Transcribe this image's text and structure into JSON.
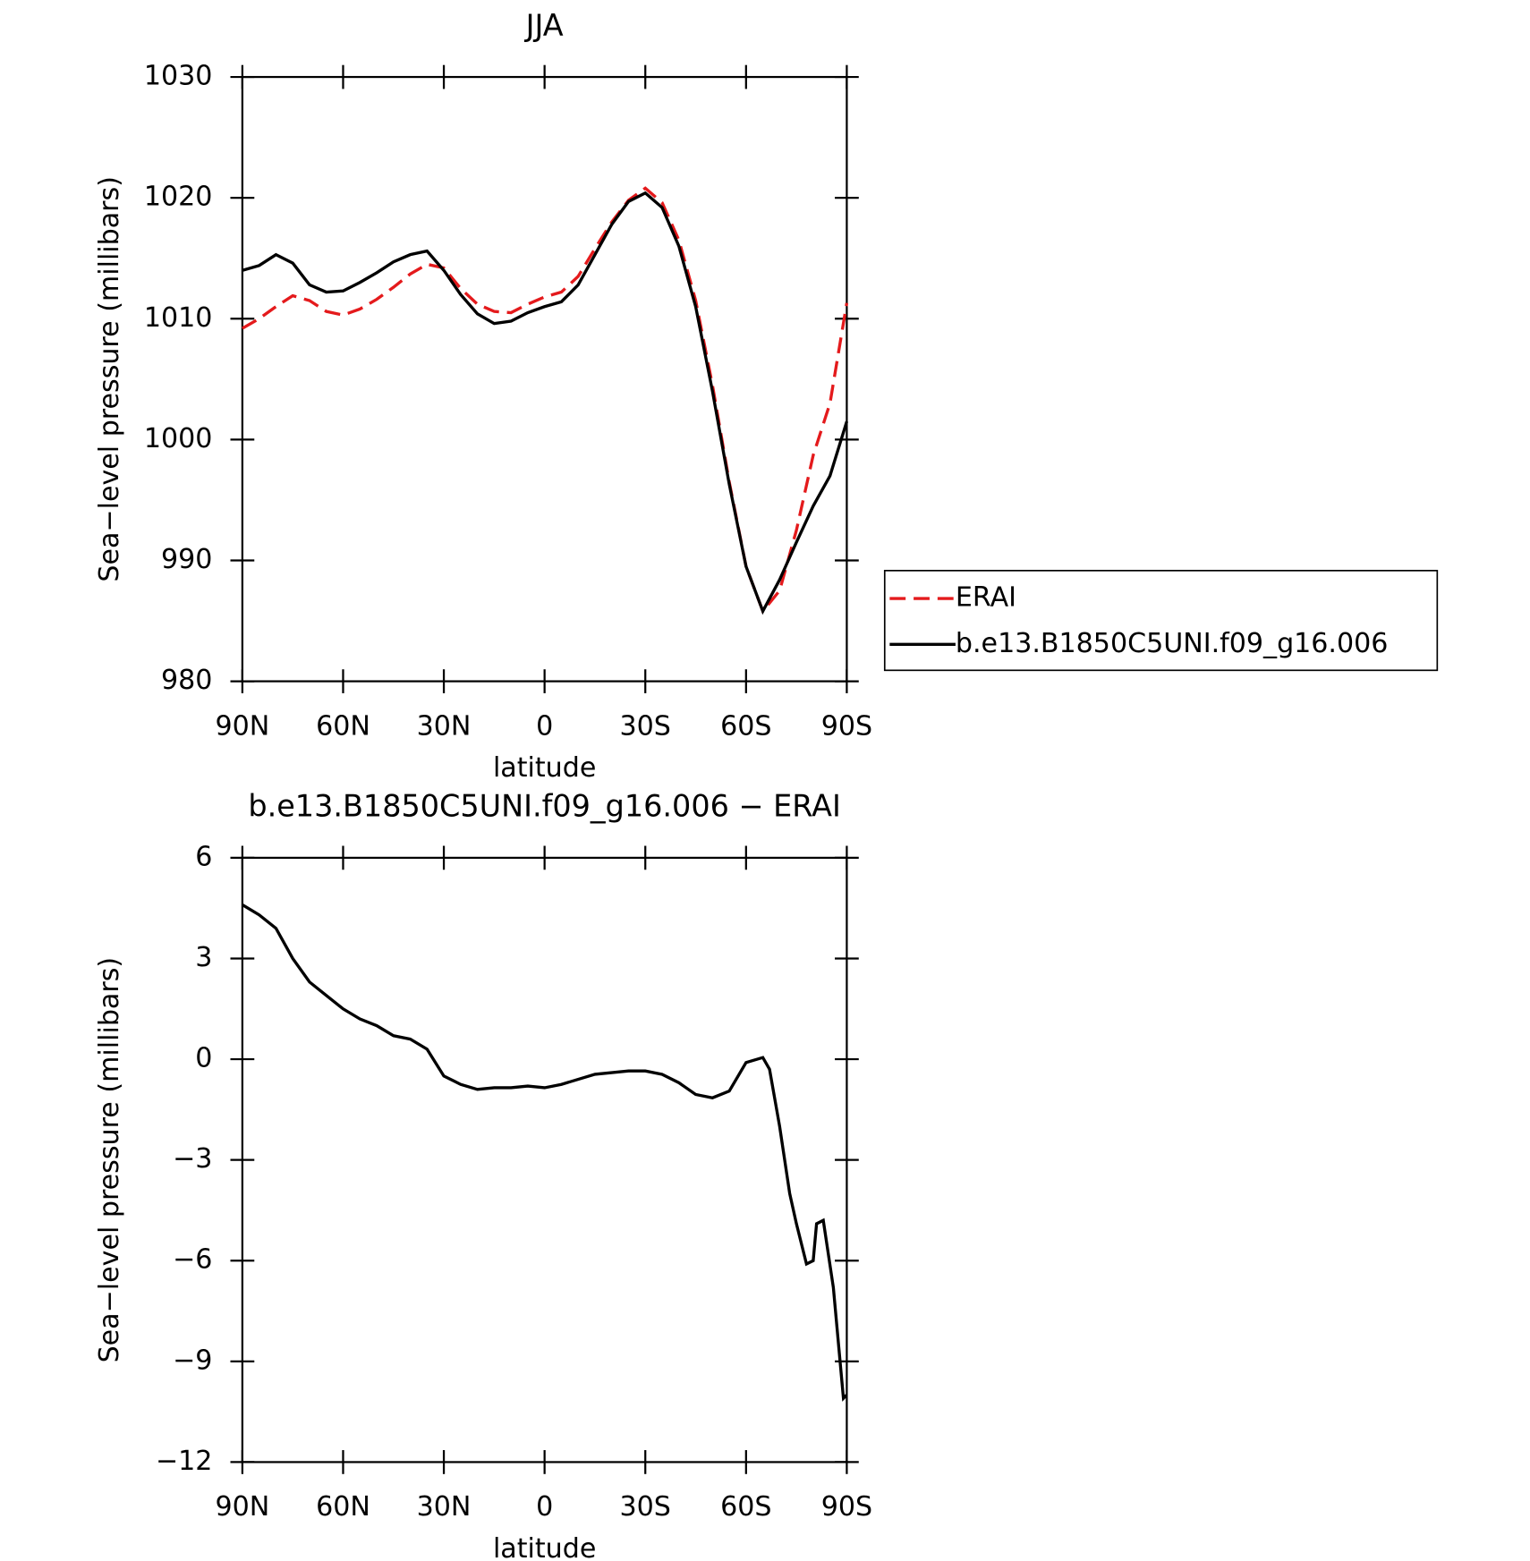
{
  "chart_data": [
    {
      "type": "line",
      "title": "JJA",
      "x_label": "latitude",
      "y_label": "Sea−level pressure (millibars)",
      "x": [
        90,
        85,
        80,
        75,
        70,
        65,
        60,
        55,
        50,
        45,
        40,
        35,
        30,
        25,
        20,
        15,
        10,
        5,
        0,
        -5,
        -10,
        -15,
        -20,
        -25,
        -30,
        -35,
        -40,
        -45,
        -50,
        -55,
        -60,
        -65,
        -70,
        -75,
        -80,
        -85,
        -90
      ],
      "series": [
        {
          "name": "ERAI",
          "color": "#e41a1c",
          "dash": true,
          "values": [
            1009.2,
            1010,
            1011,
            1011.9,
            1011.5,
            1010.6,
            1010.3,
            1010.8,
            1011.6,
            1012.6,
            1013.7,
            1014.5,
            1014.2,
            1012.5,
            1011.2,
            1010.6,
            1010.5,
            1011.2,
            1011.8,
            1012.2,
            1013.5,
            1015.8,
            1018,
            1019.8,
            1020.8,
            1019.6,
            1016.5,
            1011.5,
            1004.5,
            996.5,
            989.5,
            985.8,
            987.5,
            992.5,
            998.7,
            1003,
            1011.3
          ]
        },
        {
          "name": "b.e13.B1850C5UNI.f09_g16.006",
          "color": "#000000",
          "dash": false,
          "values": [
            1014,
            1014.4,
            1015.3,
            1014.6,
            1012.8,
            1012.2,
            1012.3,
            1013,
            1013.8,
            1014.7,
            1015.3,
            1015.6,
            1014,
            1012,
            1010.4,
            1009.6,
            1009.8,
            1010.5,
            1011,
            1011.4,
            1012.8,
            1015.3,
            1017.8,
            1019.7,
            1020.4,
            1019.2,
            1016,
            1011,
            1004,
            996.3,
            989.5,
            985.8,
            988.4,
            991.5,
            994.5,
            997,
            1001.5
          ]
        }
      ],
      "xlim": [
        90,
        -90
      ],
      "xticks": [
        {
          "value": 90,
          "label": "90N"
        },
        {
          "value": 60,
          "label": "60N"
        },
        {
          "value": 30,
          "label": "30N"
        },
        0,
        {
          "value": -30,
          "label": "30S"
        },
        {
          "value": -60,
          "label": "60S"
        },
        {
          "value": -90,
          "label": "90S"
        }
      ],
      "ylim": [
        980,
        1030
      ],
      "yticks": [
        980,
        990,
        1000,
        1010,
        1020,
        1030
      ],
      "legend": "right"
    },
    {
      "type": "line",
      "title": "b.e13.B1850C5UNI.f09_g16.006 − ERAI",
      "x_label": "latitude",
      "y_label": "Sea−level pressure (millibars)",
      "x": [
        90,
        85,
        80,
        75,
        70,
        65,
        60,
        55,
        50,
        45,
        40,
        35,
        30,
        25,
        20,
        15,
        10,
        5,
        0,
        -5,
        -10,
        -15,
        -20,
        -25,
        -30,
        -35,
        -40,
        -45,
        -50,
        -55,
        -60,
        -65,
        -67,
        -70,
        -73,
        -75,
        -78,
        -80,
        -81,
        -83,
        -86,
        -88,
        -89,
        -90
      ],
      "series": [
        {
          "color": "#000000",
          "dash": false,
          "values": [
            4.6,
            4.3,
            3.9,
            3.0,
            2.3,
            1.9,
            1.5,
            1.2,
            1.0,
            0.7,
            0.6,
            0.3,
            -0.5,
            -0.75,
            -0.9,
            -0.85,
            -0.85,
            -0.8,
            -0.85,
            -0.75,
            -0.6,
            -0.45,
            -0.4,
            -0.35,
            -0.35,
            -0.45,
            -0.7,
            -1.05,
            -1.15,
            -0.95,
            -0.1,
            0.05,
            -0.3,
            -2.0,
            -4.0,
            -4.9,
            -6.1,
            -6.0,
            -4.9,
            -4.8,
            -6.8,
            -9.0,
            -10.1,
            -10.0
          ]
        }
      ],
      "xlim": [
        90,
        -90
      ],
      "xticks": [
        {
          "value": 90,
          "label": "90N"
        },
        {
          "value": 60,
          "label": "60N"
        },
        {
          "value": 30,
          "label": "30N"
        },
        0,
        {
          "value": -30,
          "label": "30S"
        },
        {
          "value": -60,
          "label": "60S"
        },
        {
          "value": -90,
          "label": "90S"
        }
      ],
      "ylim": [
        -12,
        6
      ],
      "yticks": [
        {
          "value": -12,
          "label": "−12"
        },
        {
          "value": -9,
          "label": "−9"
        },
        {
          "value": -6,
          "label": "−6"
        },
        {
          "value": -3,
          "label": "−3"
        },
        0,
        3,
        6
      ]
    }
  ]
}
